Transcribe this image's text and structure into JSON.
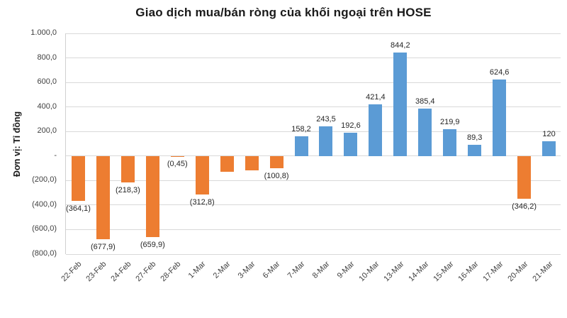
{
  "chart_data": {
    "type": "bar",
    "title": "Giao dịch mua/bán ròng của khối ngoại trên HOSE",
    "ylabel": "Đơn vị: Tỉ đồng",
    "xlabel": "",
    "ylim": [
      -800,
      1000
    ],
    "ytick_step": 200,
    "ytick_labels": [
      "1.000,0",
      "800,0",
      "600,0",
      "400,0",
      "200,0",
      "-",
      "(200,0)",
      "(400,0)",
      "(600,0)",
      "(800,0)"
    ],
    "grid": true,
    "legend": false,
    "bar_colors": {
      "positive": "#5B9BD5",
      "negative": "#ED7D31"
    },
    "categories": [
      "22-Feb",
      "23-Feb",
      "24-Feb",
      "27-Feb",
      "28-Feb",
      "1-Mar",
      "2-Mar",
      "3-Mar",
      "6-Mar",
      "7-Mar",
      "8-Mar",
      "9-Mar",
      "10-Mar",
      "13-Mar",
      "14-Mar",
      "15-Mar",
      "16-Mar",
      "17-Mar",
      "20-Mar",
      "21-Mar"
    ],
    "values": [
      -364.1,
      -677.9,
      -218.3,
      -659.9,
      -0.45,
      -312.8,
      -130,
      -120,
      -100.8,
      158.2,
      243.5,
      192.6,
      421.4,
      844.2,
      385.4,
      219.9,
      89.3,
      624.6,
      -346.2,
      120
    ],
    "value_labels": [
      "(364,1)",
      "(677,9)",
      "(218,3)",
      "(659,9)",
      "(0,45)",
      "(312,8)",
      "",
      "",
      "(100,8)",
      "158,2",
      "243,5",
      "192,6",
      "421,4",
      "844,2",
      "385,4",
      "219,9",
      "89,3",
      "624,6",
      "(346,2)",
      "120"
    ]
  }
}
